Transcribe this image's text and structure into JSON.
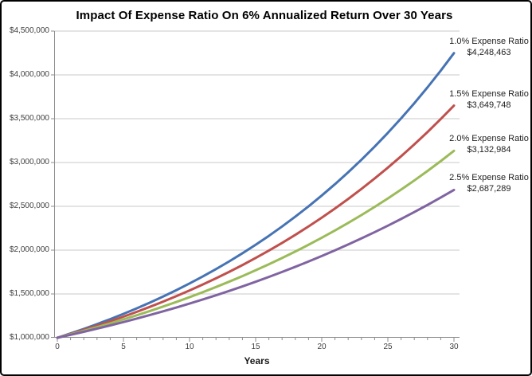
{
  "title": "Impact Of Expense Ratio On 6% Annualized Return Over 30 Years",
  "colors": {
    "background": "#ffffff",
    "frame_border": "#000000",
    "axis": "#8c8c8c",
    "gridline": "#c8c8c8",
    "title_text": "#000000",
    "tick_text": "#3f3f3f",
    "annotation_text": "#1f1f1f"
  },
  "chart_data": {
    "type": "line",
    "title": "Impact Of Expense Ratio On 6% Annualized Return Over 30 Years",
    "xlabel": "Years",
    "ylabel": "",
    "xlim": [
      0,
      30
    ],
    "ylim": [
      1000000,
      4500000
    ],
    "grid": "horizontal",
    "legend_position": "right-of-line-end-annotations",
    "x_major_ticks": [
      0,
      5,
      10,
      15,
      20,
      25,
      30
    ],
    "x_tick_labels": [
      "0",
      "5",
      "10",
      "15",
      "20",
      "25",
      "30"
    ],
    "x_minor_tick_step": 1,
    "y_ticks": [
      {
        "value": 4500000,
        "label": "$4,500,000"
      },
      {
        "value": 4000000,
        "label": "$4,000,000"
      },
      {
        "value": 3500000,
        "label": "$3,500,000"
      },
      {
        "value": 3000000,
        "label": "$3,000,000"
      },
      {
        "value": 2500000,
        "label": "$2,500,000"
      },
      {
        "value": 2000000,
        "label": "$2,000,000"
      },
      {
        "value": 1500000,
        "label": "$1,500,000"
      },
      {
        "value": 1000000,
        "label": "$1,000,000"
      }
    ],
    "x": [
      0,
      1,
      2,
      3,
      4,
      5,
      6,
      7,
      8,
      9,
      10,
      11,
      12,
      13,
      14,
      15,
      16,
      17,
      18,
      19,
      20,
      21,
      22,
      23,
      24,
      25,
      26,
      27,
      28,
      29,
      30
    ],
    "series": [
      {
        "name": "1.0% Expense Ratio",
        "final_label": "$4,248,463",
        "final_value": 4248463,
        "color": "#4673b4",
        "values": [
          1000000,
          1049400,
          1101240,
          1155642,
          1212730,
          1272639,
          1335508,
          1401482,
          1470715,
          1543368,
          1619611,
          1699619,
          1783581,
          1871690,
          1964152,
          2061181,
          2163004,
          2269856,
          2381987,
          2499657,
          2623140,
          2752723,
          2888708,
          3031409,
          3181161,
          3338311,
          3503224,
          3676283,
          3857892,
          4048472,
          4248463
        ]
      },
      {
        "name": "1.5% Expense Ratio",
        "final_label": "$3,649,748",
        "final_value": 3649748,
        "color": "#c0504d",
        "values": [
          1000000,
          1044100,
          1090145,
          1138220,
          1188416,
          1240825,
          1295545,
          1352679,
          1412332,
          1474616,
          1539646,
          1607545,
          1678437,
          1752456,
          1829740,
          1910431,
          1994681,
          2082647,
          2174492,
          2270387,
          2370511,
          2475050,
          2584200,
          2698163,
          2817152,
          2941388,
          3071104,
          3206539,
          3347948,
          3495592,
          3649748
        ]
      },
      {
        "name": "2.0% Expense Ratio",
        "final_label": "$3,132,984",
        "final_value": 3132984,
        "color": "#9bbb59",
        "values": [
          1000000,
          1038800,
          1079105,
          1120975,
          1164469,
          1209650,
          1256584,
          1305340,
          1355987,
          1408599,
          1463253,
          1520027,
          1579004,
          1640270,
          1703912,
          1770024,
          1838701,
          1910042,
          1984152,
          2061137,
          2141109,
          2224184,
          2310483,
          2400129,
          2493254,
          2589993,
          2690484,
          2794875,
          2903316,
          3015965,
          3132984
        ]
      },
      {
        "name": "2.5% Expense Ratio",
        "final_label": "$2,687,289",
        "final_value": 2687289,
        "color": "#8064a2",
        "values": [
          1000000,
          1033500,
          1068122,
          1103904,
          1140885,
          1179105,
          1218605,
          1259428,
          1301619,
          1345223,
          1390288,
          1436863,
          1484998,
          1534745,
          1586159,
          1639295,
          1694212,
          1750968,
          1809625,
          1870248,
          1932901,
          1997653,
          2064575,
          2133738,
          2205218,
          2279093,
          2355442,
          2434350,
          2515901,
          2600183,
          2687289
        ]
      }
    ]
  }
}
